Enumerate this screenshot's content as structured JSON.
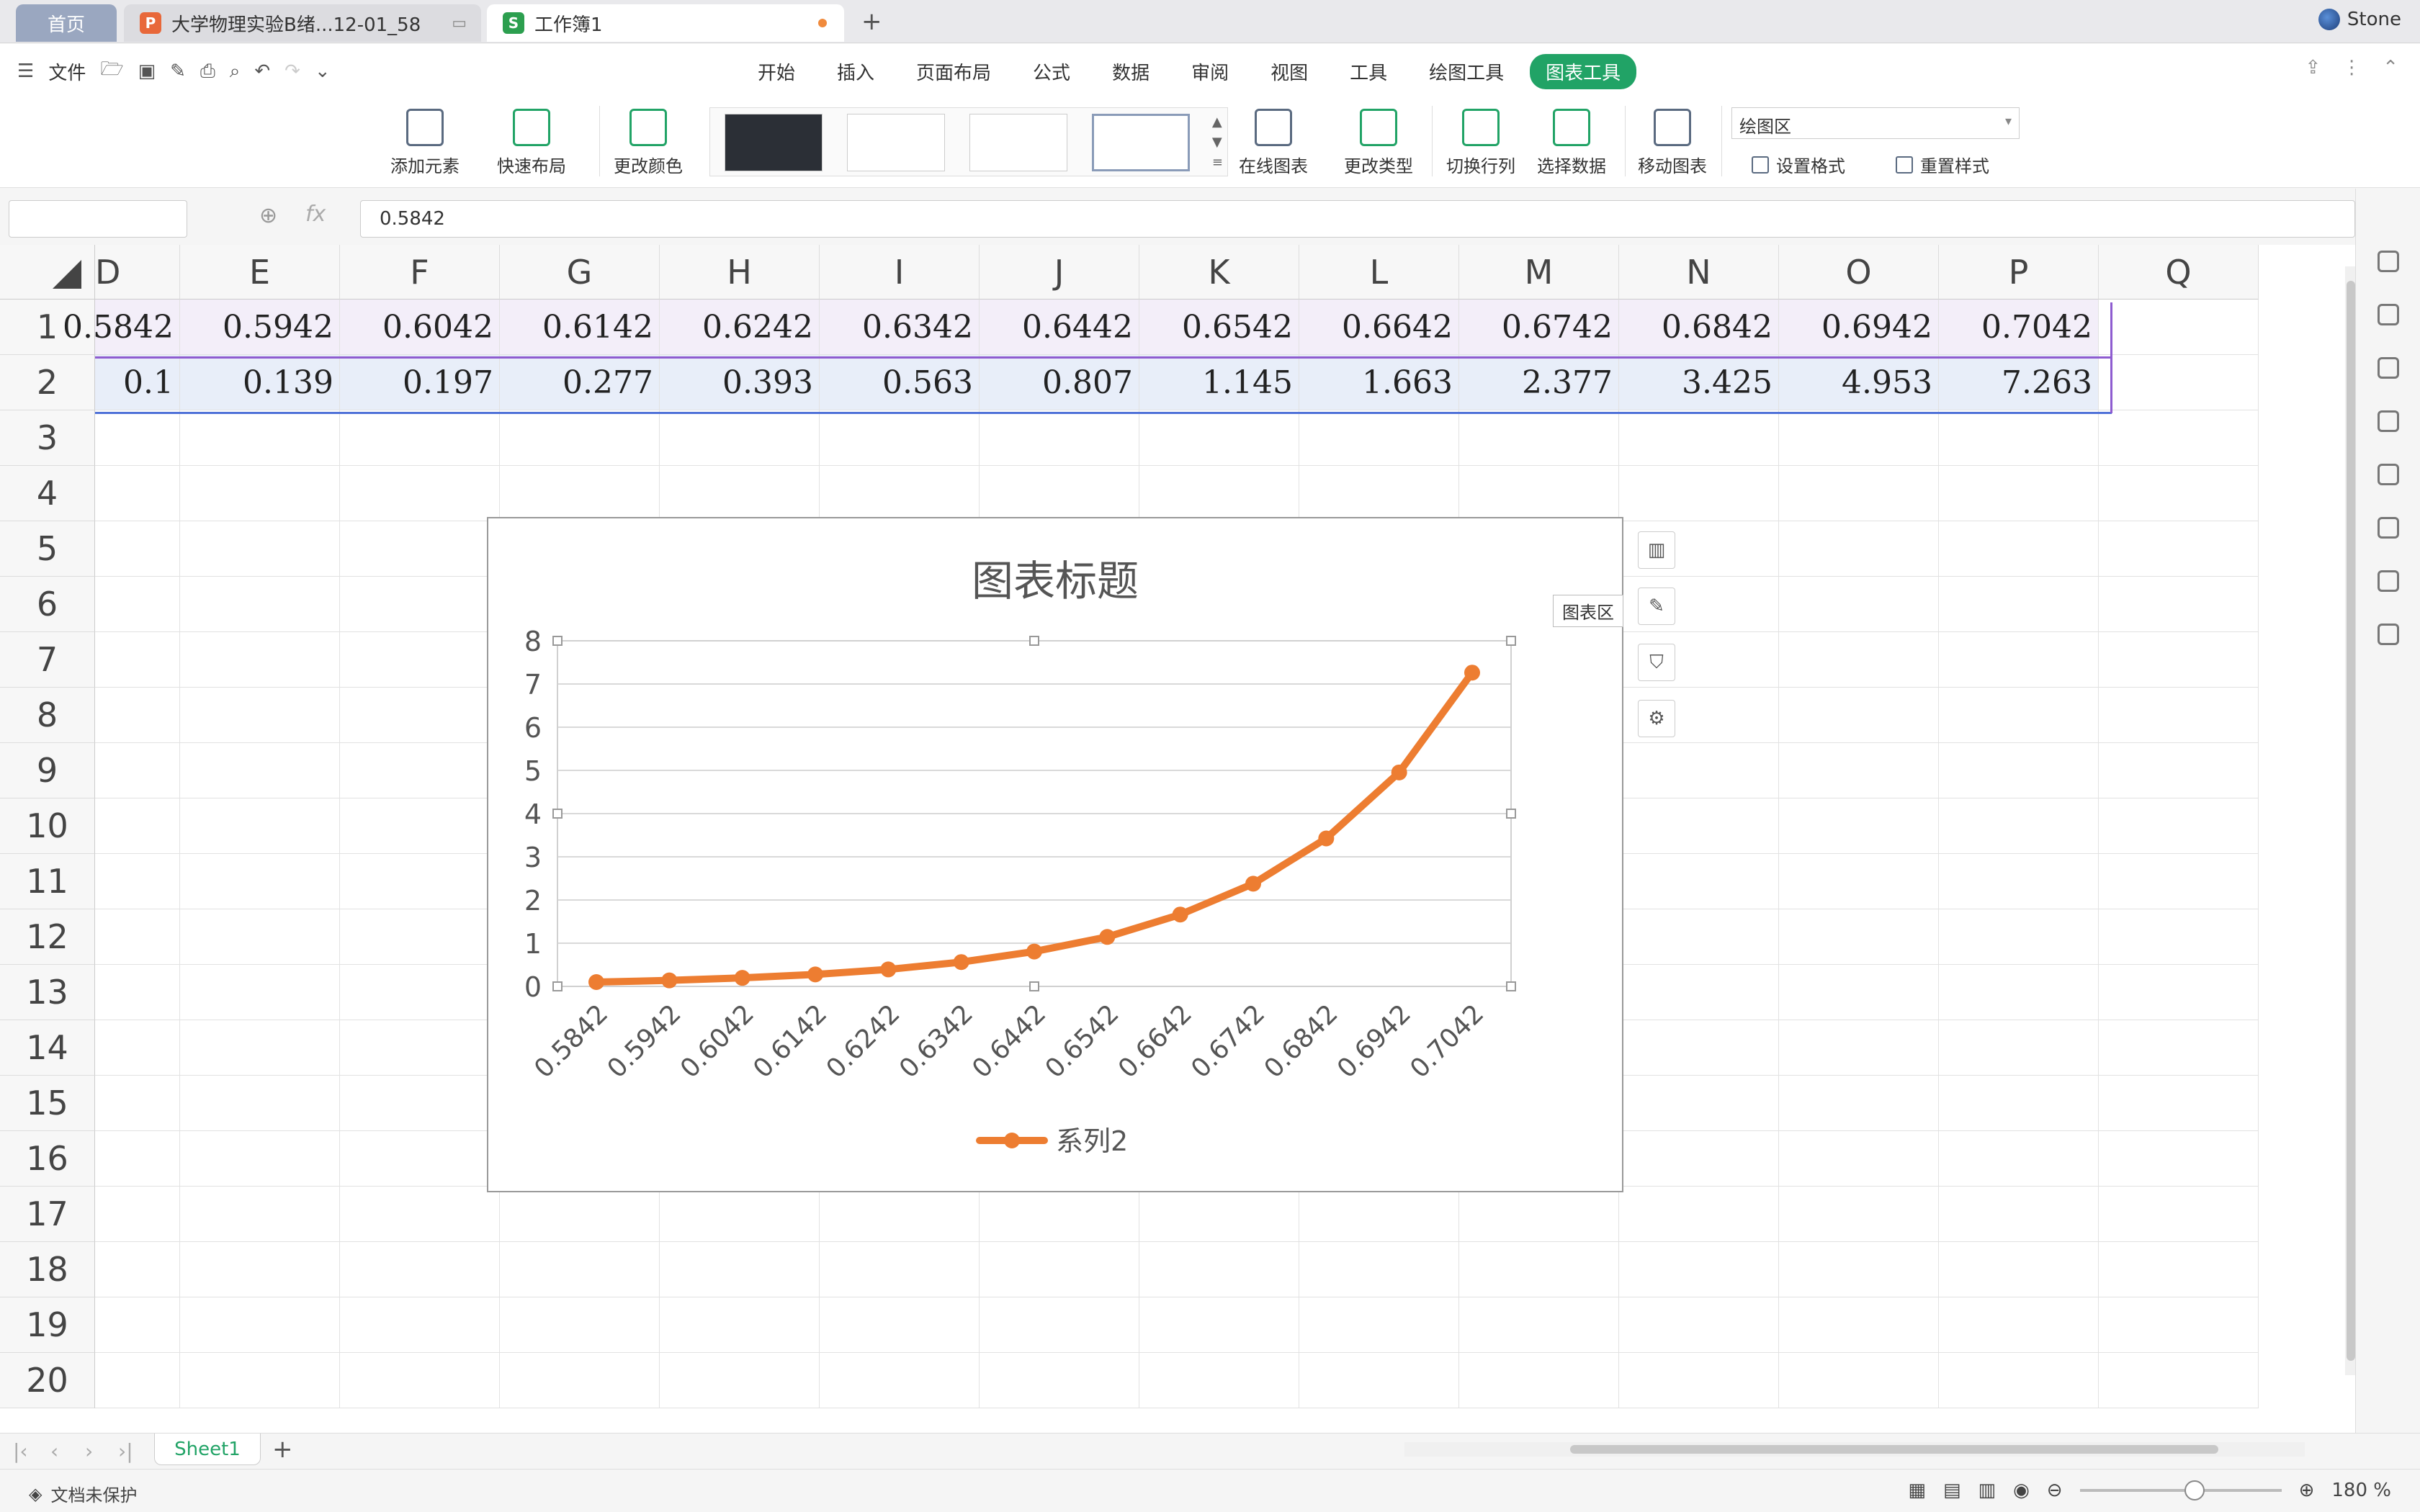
{
  "tabs": {
    "home": "首页",
    "doc": "大学物理实验B绪...12-01_58",
    "book": "工作簿1",
    "user": "Stone"
  },
  "menu": {
    "file": "文件",
    "items": [
      "开始",
      "插入",
      "页面布局",
      "公式",
      "数据",
      "审阅",
      "视图",
      "工具",
      "绘图工具",
      "图表工具"
    ],
    "active_index": 9
  },
  "ribbon": {
    "add_element": "添加元素",
    "quick_layout": "快速布局",
    "change_color": "更改颜色",
    "online_chart": "在线图表",
    "change_type": "更改类型",
    "switch_rowcol": "切换行列",
    "select_data": "选择数据",
    "move_chart": "移动图表",
    "area_dropdown": "绘图区",
    "set_format": "设置格式",
    "reset_style": "重置样式"
  },
  "formula": {
    "fx": "fx",
    "value": "0.5842"
  },
  "grid": {
    "columns": [
      "D",
      "E",
      "F",
      "G",
      "H",
      "I",
      "J",
      "K",
      "L",
      "M",
      "N",
      "O",
      "P",
      "Q"
    ],
    "rows": [
      "1",
      "2",
      "3",
      "4",
      "5",
      "6",
      "7",
      "8",
      "9",
      "10",
      "11",
      "12",
      "13",
      "14",
      "15",
      "16",
      "17",
      "18",
      "19",
      "20"
    ],
    "row1": [
      "0.5842",
      "0.5942",
      "0.6042",
      "0.6142",
      "0.6242",
      "0.6342",
      "0.6442",
      "0.6542",
      "0.6642",
      "0.6742",
      "0.6842",
      "0.6942",
      "0.7042"
    ],
    "row2": [
      "0.1",
      "0.139",
      "0.197",
      "0.277",
      "0.393",
      "0.563",
      "0.807",
      "1.145",
      "1.663",
      "2.377",
      "3.425",
      "4.953",
      "7.263"
    ]
  },
  "chart_tooltip": "图表区",
  "chart_data": {
    "type": "line",
    "title": "图表标题",
    "categories": [
      "0.5842",
      "0.5942",
      "0.6042",
      "0.6142",
      "0.6242",
      "0.6342",
      "0.6442",
      "0.6542",
      "0.6642",
      "0.6742",
      "0.6842",
      "0.6942",
      "0.7042"
    ],
    "series": [
      {
        "name": "系列2",
        "values": [
          0.1,
          0.139,
          0.197,
          0.277,
          0.393,
          0.563,
          0.807,
          1.145,
          1.663,
          2.377,
          3.425,
          4.953,
          7.263
        ],
        "color": "#ed7d31"
      }
    ],
    "ylim": [
      0,
      8
    ],
    "yticks": [
      "0",
      "1",
      "2",
      "3",
      "4",
      "5",
      "6",
      "7",
      "8"
    ],
    "grid": true,
    "legend": "bottom"
  },
  "sheet": {
    "name": "Sheet1"
  },
  "status": {
    "protect": "文档未保护",
    "zoom": "180 %",
    "zoom_level": 0.57
  },
  "colors": {
    "accent": "#21a366",
    "series": "#ed7d31",
    "row1_bg": "#f3eef9",
    "row2_bg": "#e8eef9"
  }
}
